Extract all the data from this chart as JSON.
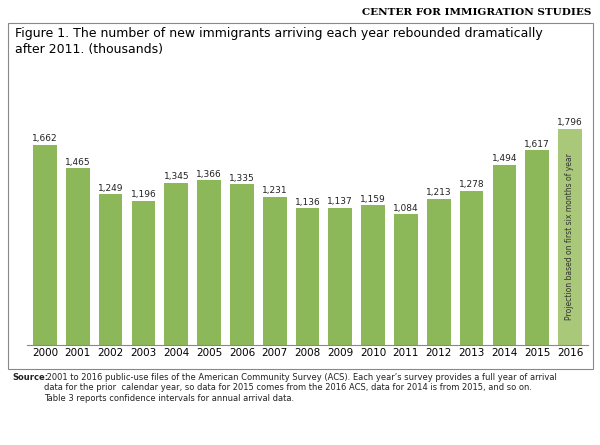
{
  "years": [
    "2000",
    "2001",
    "2002",
    "2003",
    "2004",
    "2005",
    "2006",
    "2007",
    "2008",
    "2009",
    "2010",
    "2011",
    "2012",
    "2013",
    "2014",
    "2015",
    "2016"
  ],
  "values": [
    1662,
    1465,
    1249,
    1196,
    1345,
    1366,
    1335,
    1231,
    1136,
    1137,
    1159,
    1084,
    1213,
    1278,
    1494,
    1617,
    1796
  ],
  "bar_color_normal": "#8db85a",
  "bar_color_projection": "#aac87a",
  "title": "Figure 1. The number of new immigrants arriving each year rebounded dramatically\nafter 2011. (thousands)",
  "header": "Center for Immigration Studies",
  "source_bold": "Source:",
  "source_rest": " 2001 to 2016 public-use files of the American Community Survey (ACS). Each year’s survey provides a full year of arrival\ndata for the prior  calendar year, so data for 2015 comes from the 2016 ACS, data for 2014 is from 2015, and so on.\nTable 3 reports confidence intervals for annual arrival data.",
  "projection_label": "Projection based on first six months of year",
  "ylim": [
    0,
    2050
  ],
  "bg_color": "#ffffff",
  "border_color": "#888888",
  "value_label_fontsize": 6.5,
  "xlabel_fontsize": 7.5,
  "title_fontsize": 9,
  "header_fontsize": 7.5,
  "source_fontsize": 6.0
}
